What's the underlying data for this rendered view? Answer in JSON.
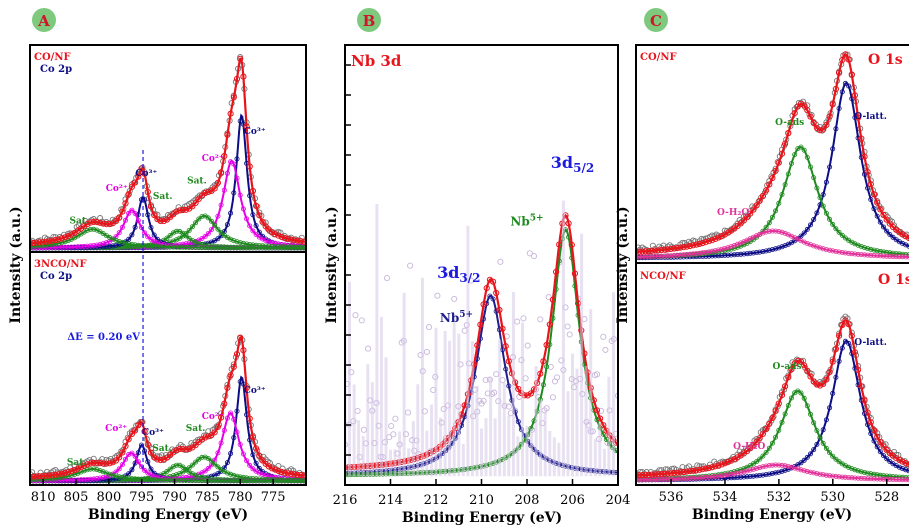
{
  "panel_letters": {
    "a": "A",
    "b": "B",
    "c": "C"
  },
  "colors": {
    "envelope": "#e8141c",
    "co3": "#0d0d85",
    "co2": "#e600e6",
    "sat": "#1f8a1f",
    "nb_low": "#1d1d8c",
    "nb_high": "#1f8a1f",
    "latt": "#0d0d85",
    "ads": "#1f8a1f",
    "h2o": "#e2329a",
    "raw_nb": "#d6c9e6",
    "raw_co": "#777777",
    "badge_fill": "#7ec97e",
    "badge_text": "#d0142a"
  },
  "chart_data": [
    {
      "type": "line",
      "panel": "A",
      "xlabel": "Binding Energy (eV)",
      "ylabel": "Intensity (a.u.)",
      "xlim": [
        812,
        770
      ],
      "x_ticks": [
        810,
        805,
        800,
        795,
        790,
        785,
        780,
        775
      ],
      "x_tick_labels": [
        "810",
        "805",
        "800",
        "795",
        "790",
        "785",
        "780",
        "775"
      ],
      "annotation": {
        "text": "ΔE = 0.20 eV",
        "x_marker": 794.8
      },
      "subplots": [
        {
          "sample": "CO/NF",
          "orbital": "Co 2p",
          "ylim": [
            0,
            100
          ],
          "peaks": [
            {
              "label": "Co³⁺",
              "species": "co3",
              "center": 779.8,
              "height": 70,
              "fwhm": 2.0
            },
            {
              "label": "Co²⁺",
              "species": "co2",
              "center": 781.3,
              "height": 46,
              "fwhm": 3.2
            },
            {
              "label": "Sat.",
              "species": "sat",
              "center": 785.5,
              "height": 17,
              "fwhm": 5.0
            },
            {
              "label": "Sat.",
              "species": "sat",
              "center": 789.5,
              "height": 9,
              "fwhm": 4.0
            },
            {
              "label": "Co³⁺",
              "species": "co3",
              "center": 794.8,
              "height": 27,
              "fwhm": 2.0
            },
            {
              "label": "Co²⁺",
              "species": "co2",
              "center": 796.5,
              "height": 20,
              "fwhm": 3.2
            },
            {
              "label": "Sat.",
              "species": "sat",
              "center": 802.5,
              "height": 10,
              "fwhm": 6.0
            }
          ],
          "labels": [
            {
              "text": "Co³⁺",
              "species": "co3",
              "x": 777.8,
              "y": 62
            },
            {
              "text": "Co²⁺",
              "species": "co2",
              "x": 784.2,
              "y": 48
            },
            {
              "text": "Sat.",
              "species": "sat",
              "x": 786.6,
              "y": 36
            },
            {
              "text": "Sat.",
              "species": "sat",
              "x": 791.8,
              "y": 28
            },
            {
              "text": "Co³⁺",
              "species": "co3",
              "x": 794.3,
              "y": 40
            },
            {
              "text": "Co²⁺",
              "species": "co2",
              "x": 798.8,
              "y": 32
            },
            {
              "text": "Sat.",
              "species": "sat",
              "x": 804.5,
              "y": 15
            }
          ]
        },
        {
          "sample": "3NCO/NF",
          "orbital": "Co 2p",
          "ylim": [
            0,
            100
          ],
          "peaks": [
            {
              "label": "Co³⁺",
              "species": "co3",
              "center": 779.8,
              "height": 52,
              "fwhm": 2.0
            },
            {
              "label": "Co²⁺",
              "species": "co2",
              "center": 781.5,
              "height": 34,
              "fwhm": 3.2
            },
            {
              "label": "Sat.",
              "species": "sat",
              "center": 785.5,
              "height": 12,
              "fwhm": 5.0
            },
            {
              "label": "Sat.",
              "species": "sat",
              "center": 789.5,
              "height": 8,
              "fwhm": 4.0
            },
            {
              "label": "Co³⁺",
              "species": "co3",
              "center": 795.0,
              "height": 18,
              "fwhm": 2.0
            },
            {
              "label": "Co²⁺",
              "species": "co2",
              "center": 796.6,
              "height": 14,
              "fwhm": 3.2
            },
            {
              "label": "Sat.",
              "species": "sat",
              "center": 802.5,
              "height": 6,
              "fwhm": 6.0
            }
          ],
          "labels": [
            {
              "text": "Co³⁺",
              "species": "co3",
              "x": 777.8,
              "y": 46
            },
            {
              "text": "Co²⁺",
              "species": "co2",
              "x": 784.2,
              "y": 33
            },
            {
              "text": "Sat.",
              "species": "sat",
              "x": 786.8,
              "y": 27
            },
            {
              "text": "Sat.",
              "species": "sat",
              "x": 791.9,
              "y": 17
            },
            {
              "text": "Co³⁺",
              "species": "co3",
              "x": 793.3,
              "y": 25
            },
            {
              "text": "Co²⁺",
              "species": "co2",
              "x": 798.9,
              "y": 27
            },
            {
              "text": "Sat.",
              "species": "sat",
              "x": 804.9,
              "y": 10
            }
          ]
        }
      ]
    },
    {
      "type": "line",
      "panel": "B",
      "title": "Nb 3d",
      "xlabel": "Binding Energy (eV)",
      "ylabel": "Intensity (a.u.)",
      "xlim": [
        216,
        204
      ],
      "ylim": [
        0,
        100
      ],
      "x_ticks": [
        216,
        214,
        212,
        210,
        208,
        206,
        204
      ],
      "x_tick_labels": [
        "216",
        "214",
        "212",
        "210",
        "208",
        "206",
        "204"
      ],
      "peaks": [
        {
          "label": "Nb⁵⁺",
          "species": "nb_low",
          "center": 209.6,
          "height": 41,
          "fwhm": 1.6
        },
        {
          "label": "Nb⁵⁺",
          "species": "nb_high",
          "center": 206.3,
          "height": 56,
          "fwhm": 1.5
        }
      ],
      "orbital_labels": [
        {
          "base": "3d",
          "sub": "3/2",
          "x": 211.0,
          "y": 47
        },
        {
          "base": "3d",
          "sub": "5/2",
          "x": 206.0,
          "y": 72
        }
      ],
      "ion_labels": [
        {
          "base": "Nb",
          "sup": "5+",
          "species": "nb_low",
          "x": 211.1,
          "y": 37
        },
        {
          "base": "Nb",
          "sup": "5+",
          "species": "nb_high",
          "x": 208.0,
          "y": 59
        }
      ]
    },
    {
      "type": "line",
      "panel": "C",
      "xlabel": "Binding Energy (eV)",
      "ylabel": "Intensity (a.u.)",
      "xlim": [
        537.3,
        527.1
      ],
      "x_ticks": [
        536,
        534,
        532,
        530,
        528
      ],
      "x_tick_labels": [
        "536",
        "534",
        "532",
        "530",
        "528"
      ],
      "subplots": [
        {
          "sample": "CO/NF",
          "orbital": "O 1s",
          "ylim": [
            0,
            100
          ],
          "peaks": [
            {
              "label": "O-latt.",
              "species": "latt",
              "center": 529.5,
              "height": 88,
              "fwhm": 1.3
            },
            {
              "label": "O-ads",
              "species": "ads",
              "center": 531.2,
              "height": 56,
              "fwhm": 1.6
            },
            {
              "label": "O-H₂O",
              "species": "h2o",
              "center": 532.2,
              "height": 14,
              "fwhm": 2.8
            }
          ],
          "labels": [
            {
              "text": "O-latt.",
              "species": "latt",
              "x": 528.6,
              "y": 72
            },
            {
              "text": "O-ads",
              "species": "ads",
              "x": 531.6,
              "y": 69
            },
            {
              "text": "O-H₂O",
              "species": "h2o",
              "x": 533.7,
              "y": 24
            }
          ]
        },
        {
          "sample": "NCO/NF",
          "orbital": "O 1s",
          "ylim": [
            0,
            100
          ],
          "peaks": [
            {
              "label": "O-latt.",
              "species": "latt",
              "center": 529.5,
              "height": 70,
              "fwhm": 1.3
            },
            {
              "label": "O-ads",
              "species": "ads",
              "center": 531.3,
              "height": 45,
              "fwhm": 1.6
            },
            {
              "label": "O-H₂O",
              "species": "h2o",
              "center": 532.1,
              "height": 8,
              "fwhm": 2.8
            }
          ],
          "labels": [
            {
              "text": "O-latt.",
              "species": "latt",
              "x": 528.6,
              "y": 70
            },
            {
              "text": "O-ads",
              "species": "ads",
              "x": 531.7,
              "y": 58
            },
            {
              "text": "O-H₂O",
              "species": "h2o",
              "x": 533.1,
              "y": 18
            }
          ]
        }
      ]
    }
  ]
}
